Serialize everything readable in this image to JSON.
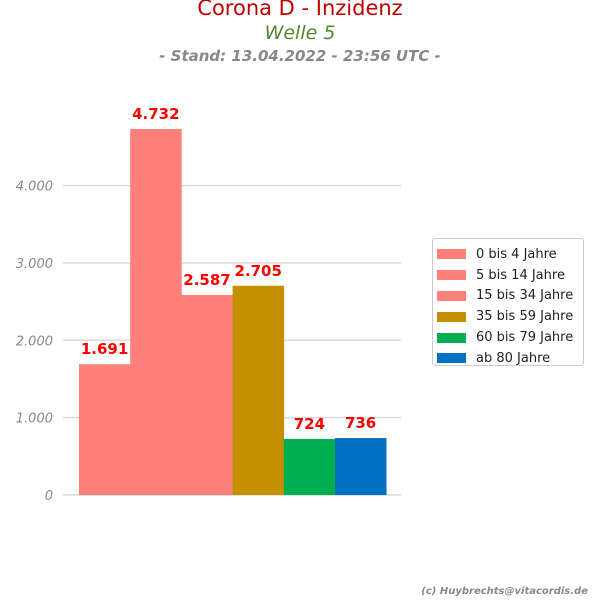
{
  "chart_data": {
    "type": "bar",
    "title": "Corona D - Inzidenz",
    "subtitle": "Welle 5",
    "stand": "- Stand: 13.04.2022 - 23:56 UTC -",
    "categories": [
      "0 bis 4 Jahre",
      "5 bis 14 Jahre",
      "15 bis 34 Jahre",
      "35 bis 59 Jahre",
      "60 bis 79 Jahre",
      "ab 80 Jahre"
    ],
    "values": [
      1691,
      4732,
      2587,
      2705,
      724,
      736
    ],
    "value_labels": [
      "1.691",
      "4.732",
      "2.587",
      "2.705",
      "724",
      "736"
    ],
    "colors": [
      "#ff7f7a",
      "#ff7f7a",
      "#ff7f7a",
      "#c49000",
      "#00b050",
      "#0070c0"
    ],
    "ylim": [
      0,
      4732
    ],
    "yticks": [
      0,
      1000,
      2000,
      3000,
      4000
    ],
    "ytick_labels": [
      "0",
      "1.000",
      "2.000",
      "3.000",
      "4.000"
    ],
    "grid": true,
    "legend_position": "right",
    "value_label_color": "#ff0000"
  },
  "credit": "(c) Huybrechts@vitacordis.de"
}
